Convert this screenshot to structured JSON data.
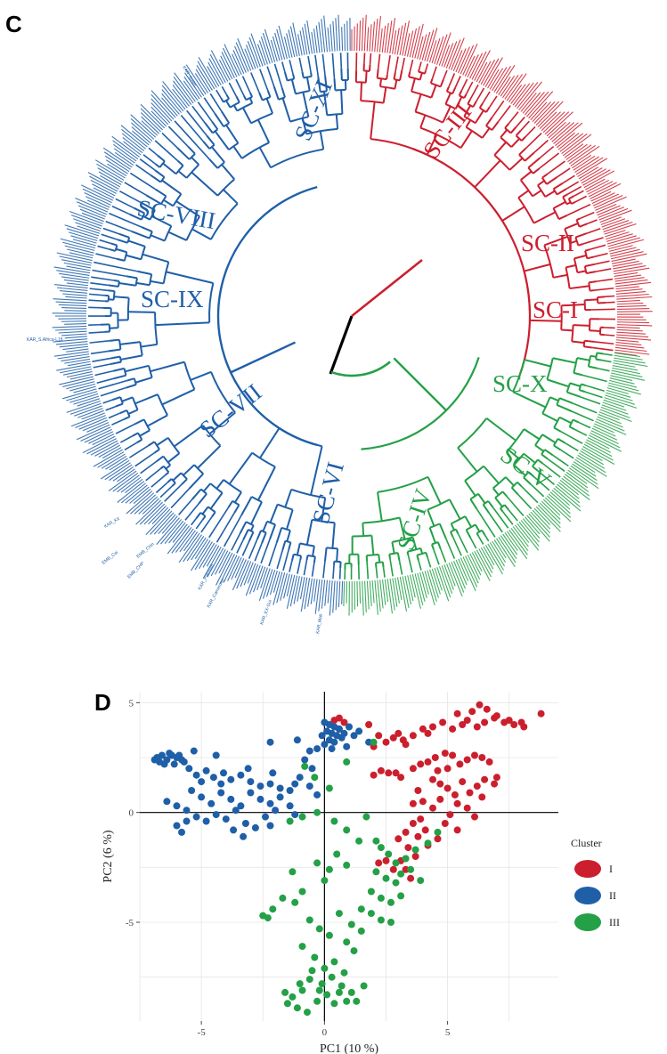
{
  "colors": {
    "red": "#cc1f2e",
    "blue": "#1f5fa8",
    "green": "#24a047",
    "black": "#000000"
  },
  "panel_c": {
    "letter": "C",
    "subclusters": [
      {
        "label": "SC-I",
        "color": "red"
      },
      {
        "label": "SC-II",
        "color": "red"
      },
      {
        "label": "SC-III",
        "color": "red"
      },
      {
        "label": "SC-IV",
        "color": "green"
      },
      {
        "label": "SC-V",
        "color": "green"
      },
      {
        "label": "SC-X",
        "color": "green"
      },
      {
        "label": "SC-VI",
        "color": "blue"
      },
      {
        "label": "SC-VII",
        "color": "blue"
      },
      {
        "label": "SC-VIII",
        "color": "blue"
      },
      {
        "label": "SC-IX",
        "color": "blue"
      },
      {
        "label": "SC-XI",
        "color": "blue"
      }
    ],
    "leaf_labels": [
      "KAR_S.Africa-L18",
      "KAR_Pakistan",
      "KAR_Cameroon",
      "KAR_EX-Gui",
      "KAR_Mali",
      "EMB_Chin",
      "EMB_CHP",
      "KAR_Kit",
      "EMB_Cai",
      "KAR_Smith"
    ]
  },
  "panel_d": {
    "letter": "D",
    "chart_data": {
      "type": "scatter",
      "title": "",
      "xlabel": "PC1 (10 %)",
      "ylabel": "PC2 (6 %)",
      "xlim": [
        -7.5,
        9.5
      ],
      "ylim": [
        -9.5,
        5.5
      ],
      "xticks": [
        -5,
        0,
        5
      ],
      "yticks": [
        -5,
        0,
        5
      ],
      "grid": true,
      "legend": {
        "title": "Cluster",
        "position": "right"
      },
      "series": [
        {
          "name": "I",
          "color": "red",
          "points": [
            [
              2.2,
              3.5
            ],
            [
              2.5,
              3.2
            ],
            [
              2.8,
              3.4
            ],
            [
              3.0,
              3.6
            ],
            [
              3.2,
              3.3
            ],
            [
              3.6,
              3.5
            ],
            [
              4.0,
              3.8
            ],
            [
              4.4,
              3.9
            ],
            [
              4.8,
              4.1
            ],
            [
              5.2,
              3.8
            ],
            [
              5.6,
              4.0
            ],
            [
              6.0,
              4.6
            ],
            [
              6.3,
              4.9
            ],
            [
              6.6,
              4.7
            ],
            [
              6.9,
              4.3
            ],
            [
              7.3,
              4.1
            ],
            [
              7.7,
              4.0
            ],
            [
              8.1,
              3.9
            ],
            [
              8.8,
              4.5
            ],
            [
              5.4,
              4.5
            ],
            [
              5.8,
              4.2
            ],
            [
              6.2,
              3.9
            ],
            [
              6.5,
              4.1
            ],
            [
              7.0,
              4.4
            ],
            [
              7.5,
              4.2
            ],
            [
              8.0,
              4.1
            ],
            [
              4.2,
              3.6
            ],
            [
              3.3,
              3.1
            ],
            [
              2.0,
              3.0
            ],
            [
              1.8,
              4.0
            ],
            [
              2.0,
              1.7
            ],
            [
              2.3,
              1.9
            ],
            [
              2.6,
              1.8
            ],
            [
              2.9,
              1.8
            ],
            [
              3.1,
              1.6
            ],
            [
              3.6,
              2.0
            ],
            [
              3.9,
              2.2
            ],
            [
              4.2,
              2.3
            ],
            [
              4.5,
              2.5
            ],
            [
              4.9,
              2.7
            ],
            [
              5.2,
              2.6
            ],
            [
              5.5,
              2.2
            ],
            [
              5.8,
              2.4
            ],
            [
              6.1,
              2.6
            ],
            [
              6.4,
              2.5
            ],
            [
              6.7,
              2.3
            ],
            [
              4.4,
              1.5
            ],
            [
              4.7,
              1.3
            ],
            [
              5.0,
              1.1
            ],
            [
              5.3,
              0.8
            ],
            [
              5.6,
              1.4
            ],
            [
              5.9,
              0.9
            ],
            [
              6.2,
              1.2
            ],
            [
              6.5,
              1.5
            ],
            [
              6.9,
              1.3
            ],
            [
              5.0,
              2.0
            ],
            [
              4.6,
              1.9
            ],
            [
              3.8,
              1.0
            ],
            [
              4.0,
              0.5
            ],
            [
              3.6,
              0.4
            ],
            [
              3.9,
              -0.3
            ],
            [
              3.6,
              -0.5
            ],
            [
              3.3,
              -0.9
            ],
            [
              3.0,
              -1.2
            ],
            [
              3.4,
              -1.6
            ],
            [
              3.7,
              -2.0
            ],
            [
              4.1,
              -0.8
            ],
            [
              4.4,
              0.2
            ],
            [
              4.7,
              0.6
            ],
            [
              5.1,
              -0.1
            ],
            [
              5.4,
              0.4
            ],
            [
              5.8,
              0.2
            ],
            [
              6.1,
              -0.2
            ],
            [
              4.9,
              -0.5
            ],
            [
              5.4,
              -0.8
            ],
            [
              4.6,
              -1.2
            ],
            [
              4.2,
              -1.5
            ],
            [
              3.8,
              -1.1
            ],
            [
              3.1,
              -2.2
            ],
            [
              2.8,
              -2.6
            ],
            [
              3.3,
              -2.6
            ],
            [
              0.4,
              4.2
            ],
            [
              0.6,
              4.3
            ],
            [
              0.8,
              4.1
            ],
            [
              0.6,
              3.8
            ],
            [
              3.5,
              -3.0
            ],
            [
              2.5,
              -2.2
            ],
            [
              2.2,
              -2.3
            ],
            [
              6.4,
              0.7
            ],
            [
              7.0,
              1.6
            ]
          ]
        },
        {
          "name": "II",
          "color": "blue",
          "points": [
            [
              -6.8,
              2.5
            ],
            [
              -6.6,
              2.6
            ],
            [
              -6.4,
              2.4
            ],
            [
              -6.2,
              2.6
            ],
            [
              -6.0,
              2.5
            ],
            [
              -5.8,
              2.4
            ],
            [
              -6.5,
              2.2
            ],
            [
              -6.1,
              2.2
            ],
            [
              -5.7,
              2.3
            ],
            [
              -6.3,
              2.7
            ],
            [
              -5.9,
              2.6
            ],
            [
              -6.7,
              2.3
            ],
            [
              -5.5,
              2.0
            ],
            [
              -5.2,
              1.7
            ],
            [
              -5.0,
              1.4
            ],
            [
              -4.8,
              1.9
            ],
            [
              -4.5,
              1.6
            ],
            [
              -4.2,
              1.3
            ],
            [
              -3.8,
              1.5
            ],
            [
              -3.4,
              1.7
            ],
            [
              -3.0,
              1.4
            ],
            [
              -2.6,
              1.2
            ],
            [
              -2.2,
              1.3
            ],
            [
              -1.8,
              1.1
            ],
            [
              -1.4,
              1.0
            ],
            [
              -1.0,
              1.6
            ],
            [
              -0.6,
              1.2
            ],
            [
              -0.3,
              0.8
            ],
            [
              -5.4,
              1.0
            ],
            [
              -5.0,
              0.7
            ],
            [
              -4.6,
              0.4
            ],
            [
              -4.2,
              0.9
            ],
            [
              -3.8,
              0.6
            ],
            [
              -3.4,
              0.3
            ],
            [
              -3.0,
              0.9
            ],
            [
              -2.6,
              0.6
            ],
            [
              -2.2,
              0.4
            ],
            [
              -1.8,
              0.7
            ],
            [
              -1.4,
              0.3
            ],
            [
              -6.4,
              0.5
            ],
            [
              -6.0,
              0.3
            ],
            [
              -5.6,
              0.1
            ],
            [
              -5.2,
              -0.2
            ],
            [
              -4.8,
              -0.4
            ],
            [
              -4.4,
              -0.1
            ],
            [
              -4.0,
              -0.3
            ],
            [
              -3.6,
              0.1
            ],
            [
              -3.2,
              -0.5
            ],
            [
              -2.8,
              -0.7
            ],
            [
              -2.4,
              -0.2
            ],
            [
              -6.0,
              -0.6
            ],
            [
              -5.6,
              -0.4
            ],
            [
              -5.8,
              -0.9
            ],
            [
              -3.3,
              -1.1
            ],
            [
              -3.7,
              -0.8
            ],
            [
              -2.2,
              -0.6
            ],
            [
              -4.1,
              1.8
            ],
            [
              -3.1,
              2.0
            ],
            [
              -2.1,
              1.8
            ],
            [
              -1.2,
              1.3
            ],
            [
              0.0,
              4.1
            ],
            [
              0.2,
              4.0
            ],
            [
              0.4,
              3.9
            ],
            [
              0.6,
              3.8
            ],
            [
              0.1,
              3.7
            ],
            [
              0.3,
              3.6
            ],
            [
              0.5,
              3.5
            ],
            [
              0.7,
              3.4
            ],
            [
              -0.1,
              3.5
            ],
            [
              0.2,
              3.3
            ],
            [
              0.4,
              3.2
            ],
            [
              0.8,
              3.6
            ],
            [
              1.0,
              3.9
            ],
            [
              1.2,
              3.5
            ],
            [
              1.4,
              3.7
            ],
            [
              0.0,
              3.1
            ],
            [
              0.3,
              2.9
            ],
            [
              -0.3,
              2.9
            ],
            [
              0.9,
              3.0
            ],
            [
              1.8,
              3.2
            ],
            [
              -0.6,
              2.8
            ],
            [
              -0.8,
              2.4
            ],
            [
              -0.5,
              2.0
            ],
            [
              -2.2,
              3.2
            ],
            [
              -1.1,
              3.3
            ],
            [
              -4.4,
              2.6
            ],
            [
              -5.3,
              2.8
            ],
            [
              -6.9,
              2.4
            ],
            [
              -2.0,
              0.1
            ],
            [
              -1.2,
              -0.1
            ]
          ]
        },
        {
          "name": "III",
          "color": "green",
          "points": [
            [
              -1.4,
              -0.4
            ],
            [
              -0.9,
              -0.2
            ],
            [
              -0.3,
              0.0
            ],
            [
              0.4,
              -0.4
            ],
            [
              0.9,
              -0.8
            ],
            [
              1.4,
              -1.3
            ],
            [
              2.3,
              -1.6
            ],
            [
              2.6,
              -1.9
            ],
            [
              2.9,
              -2.3
            ],
            [
              3.3,
              -2.1
            ],
            [
              3.7,
              -1.7
            ],
            [
              2.1,
              -2.7
            ],
            [
              2.5,
              -3.0
            ],
            [
              2.9,
              -3.2
            ],
            [
              3.1,
              -2.8
            ],
            [
              3.5,
              -2.6
            ],
            [
              1.9,
              -3.6
            ],
            [
              2.3,
              -3.9
            ],
            [
              2.7,
              -4.1
            ],
            [
              3.1,
              -3.8
            ],
            [
              1.5,
              -4.4
            ],
            [
              1.9,
              -4.6
            ],
            [
              2.3,
              -4.9
            ],
            [
              2.7,
              -5.0
            ],
            [
              1.1,
              -5.1
            ],
            [
              1.5,
              -5.4
            ],
            [
              0.9,
              -5.9
            ],
            [
              1.2,
              -6.3
            ],
            [
              0.4,
              -6.8
            ],
            [
              0.2,
              -2.6
            ],
            [
              -0.3,
              -2.3
            ],
            [
              0.5,
              -1.9
            ],
            [
              0.9,
              -2.4
            ],
            [
              0.0,
              -3.1
            ],
            [
              -0.9,
              -3.6
            ],
            [
              -1.2,
              -4.1
            ],
            [
              -1.7,
              -3.9
            ],
            [
              -2.1,
              -4.4
            ],
            [
              -2.5,
              -4.7
            ],
            [
              -0.6,
              -4.9
            ],
            [
              -0.2,
              -5.3
            ],
            [
              0.2,
              -5.6
            ],
            [
              0.6,
              -4.6
            ],
            [
              -0.9,
              -6.1
            ],
            [
              -0.4,
              -6.6
            ],
            [
              0.0,
              -7.1
            ],
            [
              0.3,
              -7.5
            ],
            [
              0.7,
              -7.9
            ],
            [
              1.1,
              -8.2
            ],
            [
              0.8,
              -7.3
            ],
            [
              -0.1,
              -7.8
            ],
            [
              -0.6,
              -7.6
            ],
            [
              -0.9,
              -8.1
            ],
            [
              -1.3,
              -8.4
            ],
            [
              -1.5,
              -8.7
            ],
            [
              -1.1,
              -8.9
            ],
            [
              -0.7,
              -9.1
            ],
            [
              -0.3,
              -8.6
            ],
            [
              0.1,
              -8.3
            ],
            [
              0.4,
              -8.7
            ],
            [
              0.9,
              -8.6
            ],
            [
              -0.5,
              -7.2
            ],
            [
              -1.6,
              -8.2
            ],
            [
              1.6,
              -7.9
            ],
            [
              -0.2,
              -8.1
            ],
            [
              0.6,
              -8.2
            ],
            [
              -1.0,
              -7.8
            ],
            [
              1.3,
              -8.6
            ],
            [
              -0.8,
              2.1
            ],
            [
              -0.4,
              1.6
            ],
            [
              0.2,
              1.1
            ],
            [
              0.9,
              2.3
            ],
            [
              2.0,
              3.2
            ],
            [
              1.7,
              -0.2
            ],
            [
              3.9,
              -3.1
            ],
            [
              4.2,
              -1.4
            ],
            [
              4.6,
              -0.9
            ],
            [
              2.1,
              -1.3
            ],
            [
              -2.3,
              -4.8
            ],
            [
              -1.3,
              -2.7
            ]
          ]
        }
      ]
    }
  }
}
